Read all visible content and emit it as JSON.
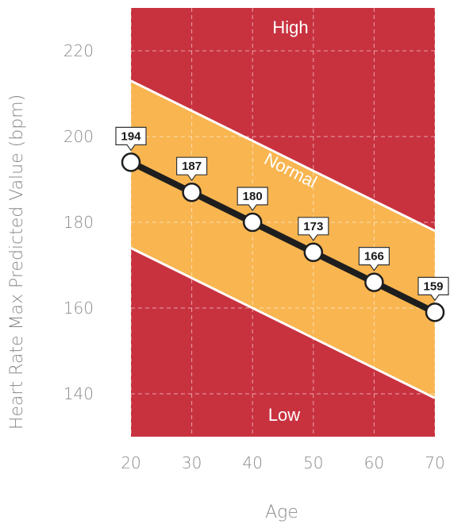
{
  "chart_data": {
    "type": "line",
    "xlabel": "Age",
    "ylabel": "Heart Rate Max Predicted Value (bpm)",
    "xlim": [
      20,
      70
    ],
    "ylim": [
      130,
      230
    ],
    "x_ticks": [
      "20",
      "30",
      "40",
      "50",
      "60",
      "70"
    ],
    "y_ticks": [
      "140",
      "160",
      "180",
      "200",
      "220"
    ],
    "grid": true,
    "series": [
      {
        "x": [
          20,
          30,
          40,
          50,
          60,
          70
        ],
        "values": [
          194,
          187,
          180,
          173,
          166,
          159
        ],
        "labels": [
          "194",
          "187",
          "180",
          "173",
          "166",
          "159"
        ]
      }
    ],
    "zones": {
      "high_label": "High",
      "normal_label": "Normal",
      "low_label": "Low",
      "upper_bound": [
        [
          20,
          213
        ],
        [
          70,
          178
        ]
      ],
      "lower_bound": [
        [
          20,
          174
        ],
        [
          70,
          139
        ]
      ]
    },
    "colors": {
      "high_low": "#c8323f",
      "normal": "#f8b550",
      "line": "#1e1e1e",
      "boundary": "#ffffff"
    }
  }
}
